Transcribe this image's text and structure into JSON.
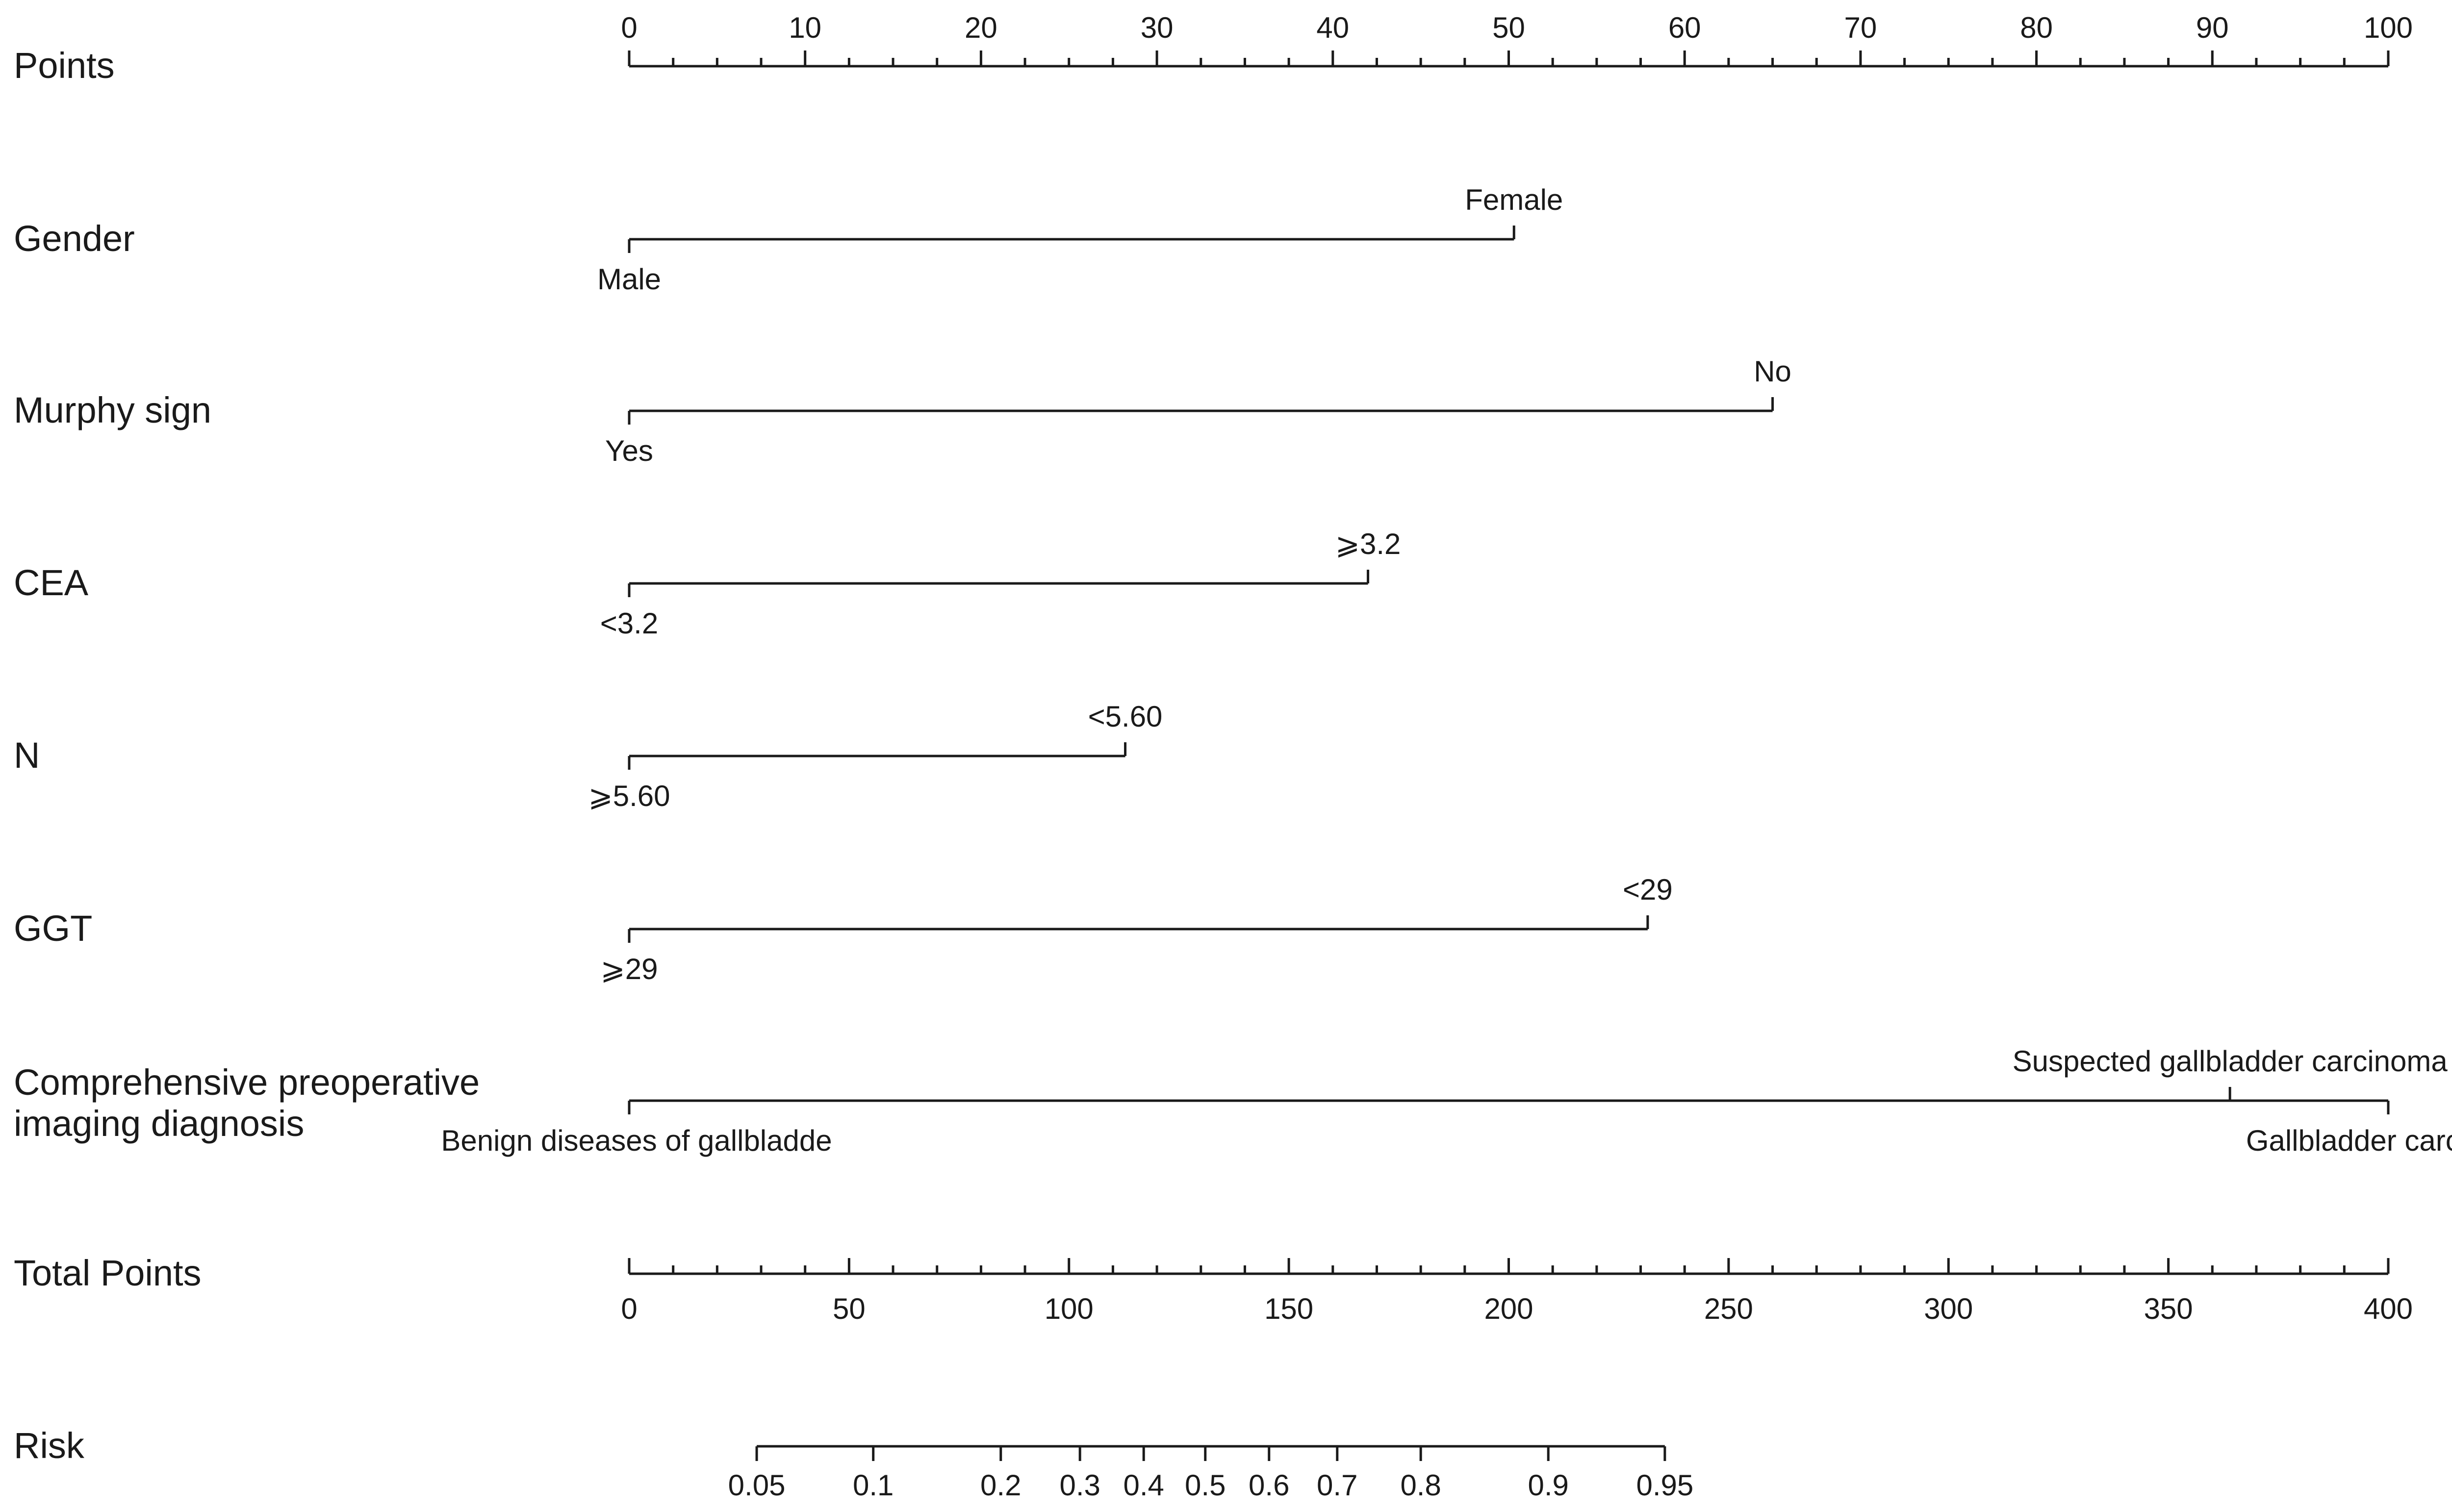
{
  "chart_data": {
    "type": "nomogram",
    "rows": [
      {
        "label": "Points",
        "kind": "axis",
        "range": [
          0,
          100
        ],
        "ticks": [
          0,
          10,
          20,
          30,
          40,
          50,
          60,
          70,
          80,
          90,
          100
        ],
        "minor_step": 2.5,
        "tick_labels": [
          "0",
          "10",
          "20",
          "30",
          "40",
          "50",
          "60",
          "70",
          "80",
          "90",
          "100"
        ],
        "label_side": "top"
      },
      {
        "label": "Gender",
        "kind": "variable",
        "levels": [
          {
            "name": "Male",
            "points": 0,
            "side": "below"
          },
          {
            "name": "Female",
            "points": 50.3,
            "side": "above"
          }
        ]
      },
      {
        "label": "Murphy sign",
        "kind": "variable",
        "levels": [
          {
            "name": "Yes",
            "points": 0,
            "side": "below"
          },
          {
            "name": "No",
            "points": 65,
            "side": "above"
          }
        ]
      },
      {
        "label": "CEA",
        "kind": "variable",
        "levels": [
          {
            "name": "<3.2",
            "points": 0,
            "side": "below"
          },
          {
            "name": "⩾3.2",
            "points": 42,
            "side": "above"
          }
        ]
      },
      {
        "label": "N",
        "kind": "variable",
        "levels": [
          {
            "name": "⩾5.60",
            "points": 0,
            "side": "below"
          },
          {
            "name": "<5.60",
            "points": 28.2,
            "side": "above"
          }
        ]
      },
      {
        "label": "GGT",
        "kind": "variable",
        "levels": [
          {
            "name": "⩾29",
            "points": 0,
            "side": "below"
          },
          {
            "name": "<29",
            "points": 57.9,
            "side": "above"
          }
        ]
      },
      {
        "label": "Comprehensive preoperative",
        "label_line2": "imaging diagnosis",
        "kind": "variable",
        "levels": [
          {
            "name": "Benign diseases of gallbladde",
            "points": 0,
            "side": "below"
          },
          {
            "name": "Suspected gallbladder carcinoma",
            "points": 91,
            "side": "above"
          },
          {
            "name": "Gallbladder carcinoma",
            "points": 100,
            "side": "below"
          }
        ]
      },
      {
        "label": "Total Points",
        "kind": "axis",
        "range": [
          0,
          400
        ],
        "ticks": [
          0,
          50,
          100,
          150,
          200,
          250,
          300,
          350,
          400
        ],
        "minor_step": 10,
        "tick_labels": [
          "0",
          "50",
          "100",
          "150",
          "200",
          "250",
          "300",
          "350",
          "400"
        ],
        "label_side": "bottom"
      },
      {
        "label": "Risk",
        "kind": "risk_axis",
        "ticks": [
          {
            "label": "0.05",
            "total_points": 29
          },
          {
            "label": "0.1",
            "total_points": 55.5
          },
          {
            "label": "0.2",
            "total_points": 84.5
          },
          {
            "label": "0.3",
            "total_points": 102.5
          },
          {
            "label": "0.4",
            "total_points": 117
          },
          {
            "label": "0.5",
            "total_points": 131
          },
          {
            "label": "0.6",
            "total_points": 145.5
          },
          {
            "label": "0.7",
            "total_points": 161
          },
          {
            "label": "0.8",
            "total_points": 180
          },
          {
            "label": "0.9",
            "total_points": 209
          },
          {
            "label": "0.95",
            "total_points": 235.5
          }
        ],
        "label_side": "bottom"
      }
    ]
  }
}
